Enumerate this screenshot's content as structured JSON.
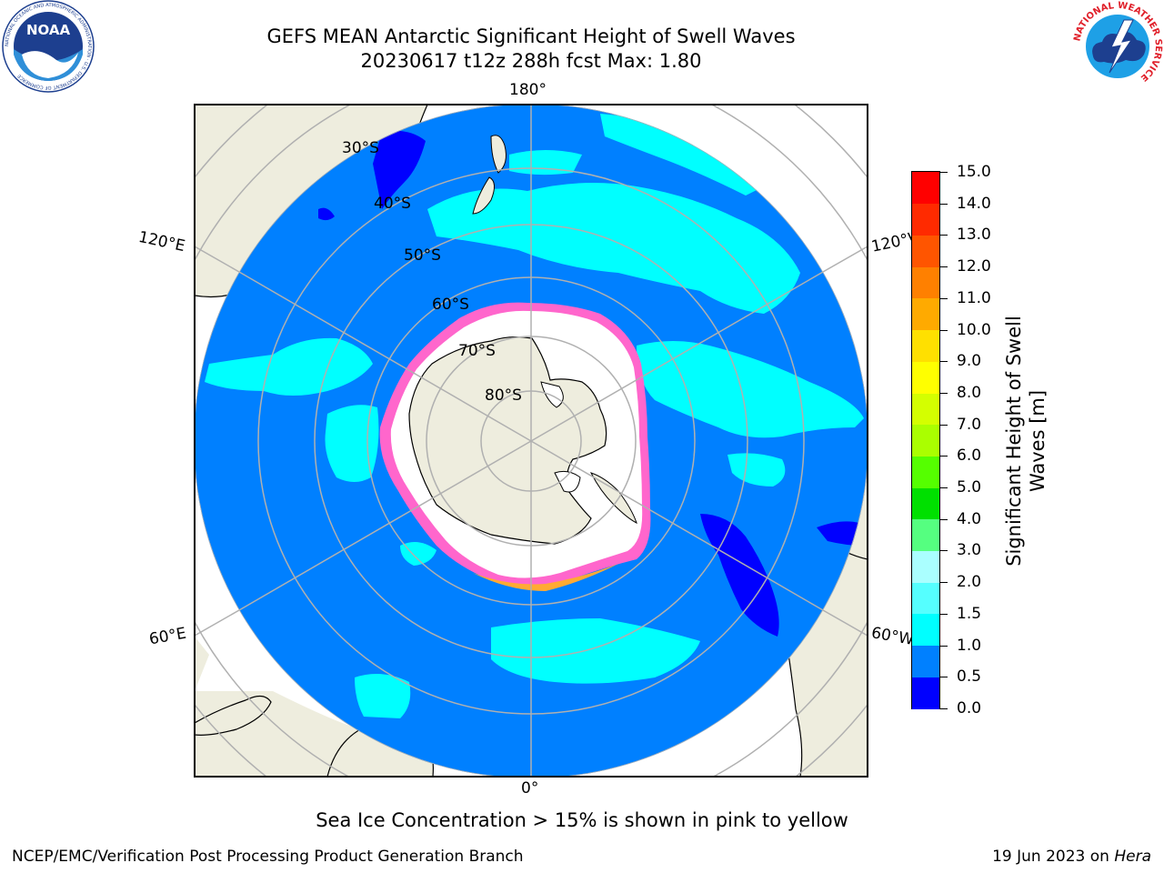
{
  "header": {
    "title_line1": "GEFS MEAN Antarctic Significant Height of Swell Waves",
    "title_line2": "20230617 t12z 288h fcst   Max: 1.80"
  },
  "map": {
    "projection": "south-polar-stereographic",
    "land_color": "#eeedde",
    "ocean_color": "#0080ff",
    "ice_color": "#ffffff",
    "grid_color": "#b0b0b0",
    "longitude_labels": {
      "top": "180°",
      "bottom": "0°",
      "upper_left": "120°E",
      "lower_left": "60°E",
      "upper_right": "120°W",
      "lower_right": "60°W"
    },
    "latitude_labels": [
      "30°S",
      "40°S",
      "50°S",
      "60°S",
      "70°S",
      "80°S"
    ]
  },
  "colorbar": {
    "label": "Significant Height of Swell Waves [m]",
    "label_line1": "Significant Height of Swell",
    "label_line2": "Waves [m]",
    "ticks": [
      "15.0",
      "14.0",
      "13.0",
      "12.0",
      "11.0",
      "10.0",
      "9.0",
      "8.0",
      "7.0",
      "6.0",
      "5.0",
      "4.0",
      "3.0",
      "2.0",
      "1.5",
      "1.0",
      "0.5",
      "0.0"
    ],
    "colors": [
      "#0000ff",
      "#0080ff",
      "#00ffff",
      "#55ffff",
      "#aaffff",
      "#55ff80",
      "#00e000",
      "#55ff00",
      "#aaff00",
      "#d4ff00",
      "#ffff00",
      "#ffe000",
      "#ffaa00",
      "#ff8000",
      "#ff5500",
      "#ff2a00",
      "#ff0000"
    ]
  },
  "caption": "Sea Ice Concentration > 15% is shown in pink to yellow",
  "footer": {
    "left": "NCEP/EMC/Verification Post Processing Product Generation Branch",
    "right_date": "19 Jun 2023 on ",
    "right_host": "Hera"
  },
  "logos": {
    "noaa_text": "NOAA",
    "noaa_ring_text": "NATIONAL OCEANIC AND ATMOSPHERIC ADMINISTRATION · U.S. DEPARTMENT OF COMMERCE",
    "nws_ring_text": "NATIONAL WEATHER SERVICE"
  }
}
